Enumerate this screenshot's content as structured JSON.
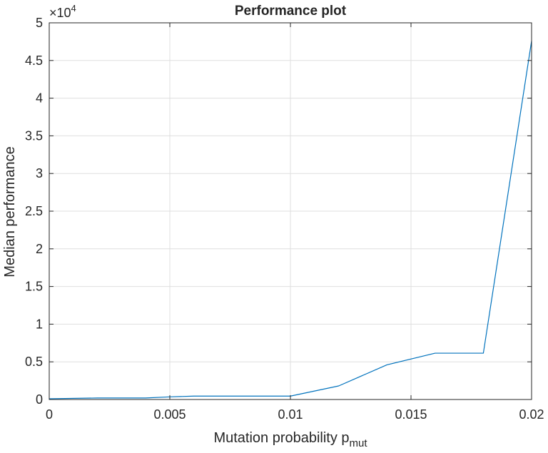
{
  "chart_data": {
    "type": "line",
    "title": "Performance plot",
    "xlabel": "Mutation probability p",
    "xlabel_subscript": "mut",
    "ylabel": "Median performance",
    "exponent_label": "×10",
    "exponent_power": "4",
    "xlim": [
      0,
      0.02
    ],
    "ylim": [
      0,
      50000
    ],
    "grid": true,
    "x_ticks": [
      0,
      0.005,
      0.01,
      0.015,
      0.02
    ],
    "x_tick_labels": [
      "0",
      "0.005",
      "0.01",
      "0.015",
      "0.02"
    ],
    "y_ticks": [
      0,
      5000,
      10000,
      15000,
      20000,
      25000,
      30000,
      35000,
      40000,
      45000,
      50000
    ],
    "y_tick_labels": [
      "0",
      "0.5",
      "1",
      "1.5",
      "2",
      "2.5",
      "3",
      "3.5",
      "4",
      "4.5",
      "5"
    ],
    "series": [
      {
        "color": "#0072BD",
        "x": [
          0,
          0.002,
          0.004,
          0.005,
          0.006,
          0.008,
          0.01,
          0.012,
          0.014,
          0.016,
          0.018,
          0.02
        ],
        "y": [
          100,
          200,
          200,
          350,
          450,
          450,
          450,
          1800,
          4600,
          6150,
          6150,
          47600
        ]
      }
    ]
  }
}
